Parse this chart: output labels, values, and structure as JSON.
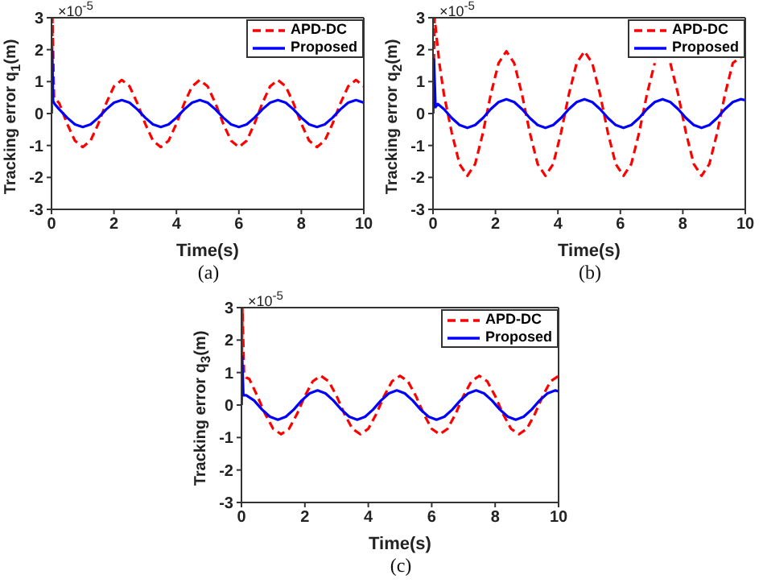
{
  "chart_data": [
    {
      "type": "line",
      "xlabel": "Time(s)",
      "ylabel": "Tracking error q$_{1}$(m)",
      "annotations": [
        "×10$^{-5}$",
        "(a)"
      ],
      "xlim": [
        0,
        10
      ],
      "xticks": [
        0,
        2,
        4,
        6,
        8,
        10
      ],
      "ylim": [
        -3,
        3
      ],
      "yticks": [
        -3,
        -2,
        -1,
        0,
        1,
        2,
        3
      ],
      "legend": "top right",
      "series": [
        {
          "name": "APD-DC",
          "color": "#ff0000",
          "line_style": "dashed",
          "x": [
            0,
            0.03,
            0.08,
            0.25,
            0.5,
            0.75,
            1,
            1.25,
            1.5,
            1.75,
            2,
            2.25,
            2.5,
            2.75,
            3,
            3.25,
            3.5,
            3.75,
            4,
            4.25,
            4.5,
            4.75,
            5,
            5.25,
            5.5,
            5.75,
            6,
            6.25,
            6.5,
            6.75,
            7,
            7.25,
            7.5,
            7.75,
            8,
            8.25,
            8.5,
            8.75,
            9,
            9.25,
            9.5,
            9.75,
            10
          ],
          "values": [
            0,
            3,
            0.5,
            0.32,
            -0.32,
            -0.85,
            -1.05,
            -0.85,
            -0.32,
            0.32,
            0.85,
            1.05,
            0.85,
            0.32,
            -0.32,
            -0.85,
            -1.05,
            -0.85,
            -0.32,
            0.32,
            0.85,
            1.05,
            0.85,
            0.32,
            -0.32,
            -0.85,
            -1.05,
            -0.85,
            -0.32,
            0.32,
            0.85,
            1.05,
            0.85,
            0.32,
            -0.32,
            -0.85,
            -1.05,
            -0.85,
            -0.32,
            0.32,
            0.85,
            1.05,
            0.85
          ]
        },
        {
          "name": "Proposed",
          "color": "#0000ff",
          "line_style": "solid",
          "x": [
            0,
            0.02,
            0.05,
            0.1,
            0.25,
            0.5,
            0.75,
            1,
            1.25,
            1.5,
            1.75,
            2,
            2.25,
            2.5,
            2.75,
            3,
            3.25,
            3.5,
            3.75,
            4,
            4.25,
            4.5,
            4.75,
            5,
            5.25,
            5.5,
            5.75,
            6,
            6.25,
            6.5,
            6.75,
            7,
            7.25,
            7.5,
            7.75,
            8,
            8.25,
            8.5,
            8.75,
            9,
            9.25,
            9.5,
            9.75,
            10
          ],
          "values": [
            0,
            2,
            0.4,
            0.3,
            0.13,
            -0.13,
            -0.34,
            -0.42,
            -0.34,
            -0.13,
            0.13,
            0.34,
            0.42,
            0.34,
            0.13,
            -0.13,
            -0.34,
            -0.42,
            -0.34,
            -0.13,
            0.13,
            0.34,
            0.42,
            0.34,
            0.13,
            -0.13,
            -0.34,
            -0.42,
            -0.34,
            -0.13,
            0.13,
            0.34,
            0.42,
            0.34,
            0.13,
            -0.13,
            -0.34,
            -0.42,
            -0.34,
            -0.13,
            0.13,
            0.34,
            0.42,
            0.34
          ]
        }
      ]
    },
    {
      "type": "line",
      "xlabel": "Time(s)",
      "ylabel": "Tracking error q$_{2}$(m)",
      "annotations": [
        "×10$^{-5}$",
        "(b)"
      ],
      "xlim": [
        0,
        10
      ],
      "xticks": [
        0,
        2,
        4,
        6,
        8,
        10
      ],
      "ylim": [
        -3,
        3
      ],
      "yticks": [
        -3,
        -2,
        -1,
        0,
        1,
        2,
        3
      ],
      "legend": "top right",
      "series": [
        {
          "name": "APD-DC",
          "color": "#ff0000",
          "line_style": "dashed",
          "x": [
            0,
            0.05,
            0.2,
            0.35,
            0.6,
            0.85,
            1.1,
            1.35,
            1.6,
            1.85,
            2.1,
            2.35,
            2.6,
            2.85,
            3.1,
            3.35,
            3.6,
            3.85,
            4.1,
            4.35,
            4.6,
            4.85,
            5.1,
            5.35,
            5.6,
            5.85,
            6.1,
            6.35,
            6.6,
            6.85,
            7.1,
            7.35,
            7.6,
            7.85,
            8.1,
            8.35,
            8.6,
            8.85,
            9.1,
            9.35,
            9.6,
            10
          ],
          "values": [
            0,
            3,
            1.6,
            0.6,
            -0.6,
            -1.58,
            -1.95,
            -1.58,
            -0.6,
            0.6,
            1.58,
            1.95,
            1.58,
            0.6,
            -0.6,
            -1.58,
            -1.95,
            -1.58,
            -0.6,
            0.6,
            1.58,
            1.95,
            1.58,
            0.6,
            -0.6,
            -1.58,
            -1.95,
            -1.58,
            -0.6,
            0.6,
            1.58,
            null,
            1.58,
            0.6,
            -0.6,
            -1.58,
            -1.95,
            -1.58,
            -0.6,
            0.6,
            1.58,
            1.87
          ]
        },
        {
          "name": "Proposed",
          "color": "#0000ff",
          "line_style": "solid",
          "x": [
            0,
            0.03,
            0.08,
            0.15,
            0.35,
            0.6,
            0.85,
            1.1,
            1.35,
            1.6,
            1.85,
            2.1,
            2.35,
            2.6,
            2.85,
            3.1,
            3.35,
            3.6,
            3.85,
            4.1,
            4.35,
            4.6,
            4.85,
            5.1,
            5.35,
            5.6,
            5.85,
            6.1,
            6.35,
            6.6,
            6.85,
            7.1,
            7.35,
            7.6,
            7.85,
            8.1,
            8.35,
            8.6,
            8.85,
            9.1,
            9.35,
            9.6,
            9.85,
            10
          ],
          "values": [
            0,
            1.7,
            0.2,
            0.3,
            0.14,
            -0.14,
            -0.36,
            -0.45,
            -0.36,
            -0.14,
            0.14,
            0.36,
            0.45,
            0.36,
            0.14,
            -0.14,
            -0.36,
            -0.45,
            -0.36,
            -0.14,
            0.14,
            0.36,
            0.45,
            0.36,
            0.14,
            -0.14,
            -0.36,
            -0.45,
            -0.36,
            -0.14,
            0.14,
            0.36,
            0.45,
            0.36,
            0.14,
            -0.14,
            -0.36,
            -0.45,
            -0.36,
            -0.14,
            0.14,
            0.36,
            0.45,
            0.42
          ]
        }
      ]
    },
    {
      "type": "line",
      "xlabel": "Time(s)",
      "ylabel": "Tracking error q$_{3}$(m)",
      "annotations": [
        "×10$^{-5}$",
        "(c)"
      ],
      "xlim": [
        0,
        10
      ],
      "xticks": [
        0,
        2,
        4,
        6,
        8,
        10
      ],
      "ylim": [
        -3,
        3
      ],
      "yticks": [
        -3,
        -2,
        -1,
        0,
        1,
        2,
        3
      ],
      "legend": "top right",
      "series": [
        {
          "name": "APD-DC",
          "color": "#ff0000",
          "line_style": "dashed",
          "x": [
            0,
            0.03,
            0.08,
            0.15,
            0.25,
            0.5,
            0.75,
            1,
            1.25,
            1.5,
            1.75,
            2,
            2.25,
            2.5,
            2.75,
            3,
            3.25,
            3.5,
            3.75,
            4,
            4.25,
            4.5,
            4.75,
            5,
            5.25,
            5.5,
            5.75,
            6,
            6.25,
            6.5,
            6.75,
            7,
            7.25,
            7.5,
            7.75,
            8,
            8.25,
            8.5,
            8.75,
            9,
            9.25,
            9.5,
            9.75,
            10
          ],
          "values": [
            0,
            3,
            1,
            0.85,
            0.8,
            0.28,
            -0.28,
            -0.73,
            -0.9,
            -0.73,
            -0.28,
            0.28,
            0.73,
            0.9,
            0.73,
            0.28,
            -0.28,
            -0.73,
            -0.9,
            -0.73,
            -0.28,
            0.28,
            0.73,
            0.9,
            0.73,
            0.28,
            -0.28,
            -0.73,
            -0.9,
            -0.73,
            -0.28,
            0.28,
            0.73,
            0.9,
            0.73,
            0.28,
            -0.28,
            -0.73,
            -0.9,
            -0.73,
            -0.28,
            0.28,
            0.73,
            0.9
          ]
        },
        {
          "name": "Proposed",
          "color": "#0000ff",
          "line_style": "solid",
          "x": [
            0,
            0.02,
            0.06,
            0.15,
            0.4,
            0.65,
            0.9,
            1.15,
            1.4,
            1.65,
            1.9,
            2.15,
            2.4,
            2.65,
            2.9,
            3.15,
            3.4,
            3.65,
            3.9,
            4.15,
            4.4,
            4.65,
            4.9,
            5.15,
            5.4,
            5.65,
            5.9,
            6.15,
            6.4,
            6.65,
            6.9,
            7.15,
            7.4,
            7.65,
            7.9,
            8.15,
            8.4,
            8.65,
            8.9,
            9.15,
            9.4,
            9.65,
            9.9,
            10
          ],
          "values": [
            0,
            1.5,
            0.3,
            0.3,
            0.14,
            -0.14,
            -0.36,
            -0.45,
            -0.36,
            -0.14,
            0.14,
            0.36,
            0.45,
            0.36,
            0.14,
            -0.14,
            -0.36,
            -0.45,
            -0.36,
            -0.14,
            0.14,
            0.36,
            0.45,
            0.36,
            0.14,
            -0.14,
            -0.36,
            -0.45,
            -0.36,
            -0.14,
            0.14,
            0.36,
            0.45,
            0.36,
            0.14,
            -0.14,
            -0.36,
            -0.45,
            -0.36,
            -0.14,
            0.14,
            0.36,
            0.45,
            0.42
          ]
        }
      ]
    }
  ]
}
